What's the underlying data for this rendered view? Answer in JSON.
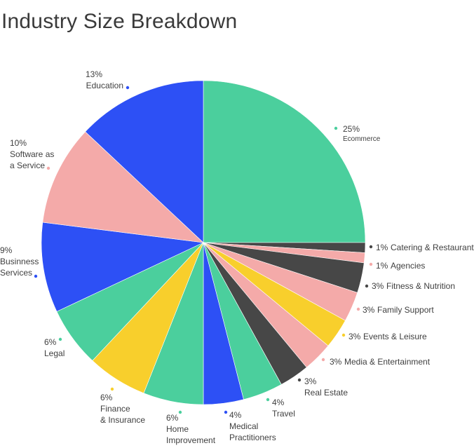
{
  "title": "Industry Size Breakdown",
  "chart_data": {
    "type": "pie",
    "title": "Industry Size Breakdown",
    "colors": {
      "green": "#4bcf9d",
      "blue": "#2d50f5",
      "pink": "#f4aaa9",
      "yellow": "#f8cf2c",
      "dark": "#474747"
    },
    "slices": [
      {
        "label": "Ecommerce",
        "value": 25,
        "pct": "25%",
        "color": "#4bcf9d"
      },
      {
        "label": "Catering & Restaurants",
        "value": 1,
        "pct": "1%",
        "color": "#474747"
      },
      {
        "label": "Agencies",
        "value": 1,
        "pct": "1%",
        "color": "#f4aaa9"
      },
      {
        "label": "Fitness & Nutrition",
        "value": 3,
        "pct": "3%",
        "color": "#474747"
      },
      {
        "label": "Family Support",
        "value": 3,
        "pct": "3%",
        "color": "#f4aaa9"
      },
      {
        "label": "Events & Leisure",
        "value": 3,
        "pct": "3%",
        "color": "#f8cf2c"
      },
      {
        "label": "Media & Entertainment",
        "value": 3,
        "pct": "3%",
        "color": "#f4aaa9"
      },
      {
        "label": "Real Estate",
        "value": 3,
        "pct": "3%",
        "color": "#474747"
      },
      {
        "label": "Travel",
        "value": 4,
        "pct": "4%",
        "color": "#4bcf9d"
      },
      {
        "label": "Medical Practitioners",
        "value": 4,
        "pct": "4%",
        "color": "#2d50f5"
      },
      {
        "label": "Home Improvement",
        "value": 6,
        "pct": "6%",
        "color": "#4bcf9d"
      },
      {
        "label": "Finance & Insurance",
        "value": 6,
        "pct": "6%",
        "color": "#f8cf2c"
      },
      {
        "label": "Legal",
        "value": 6,
        "pct": "6%",
        "color": "#4bcf9d"
      },
      {
        "label": "Businness Services",
        "value": 9,
        "pct": "9%",
        "color": "#2d50f5"
      },
      {
        "label": "Software as a Service",
        "value": 10,
        "pct": "10%",
        "color": "#f4aaa9"
      },
      {
        "label": "Education",
        "value": 13,
        "pct": "13%",
        "color": "#2d50f5"
      }
    ]
  }
}
